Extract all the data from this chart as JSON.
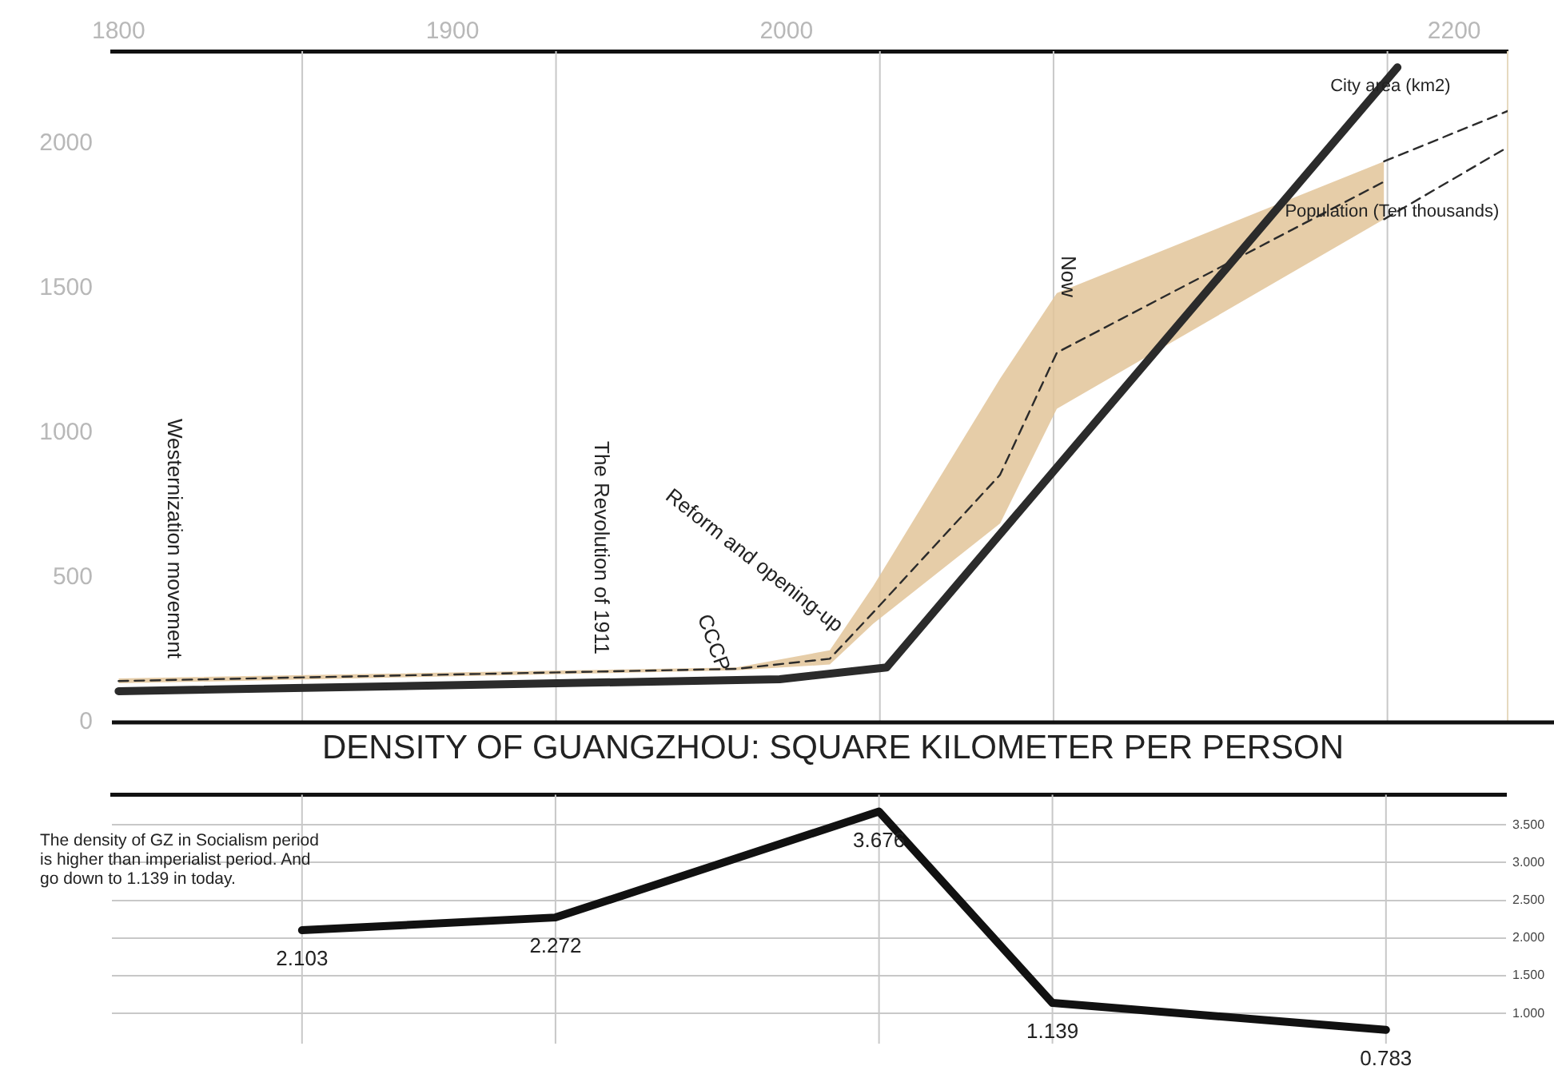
{
  "chart_data": [
    {
      "type": "line",
      "xlim": [
        1798,
        2216
      ],
      "xticks": [
        1800,
        1900,
        2000,
        2200
      ],
      "ylim": [
        0,
        2320
      ],
      "yticks": [
        0,
        500,
        1000,
        1500,
        2000
      ],
      "series": [
        {
          "name": "City area (km2)",
          "color": "#2b2b2b",
          "x": [
            1800,
            1998,
            2030,
            2183
          ],
          "values": [
            108,
            149,
            190,
            2264
          ]
        },
        {
          "name": "Population (Ten thousands)",
          "color": "#2b2b2b",
          "line_style": "dashed",
          "x": [
            1800,
            1985,
            2013,
            2026,
            2064,
            2081,
            2179
          ],
          "values": [
            143,
            185,
            220,
            380,
            856,
            1278,
            1869
          ],
          "lower": [
            135,
            180,
            200,
            341,
            688,
            1084,
            1739
          ],
          "upper": [
            152,
            190,
            249,
            471,
            1188,
            1484,
            1939
          ]
        },
        {
          "color": "#2b2b2b",
          "line_style": "dashed",
          "x": [
            2179,
            2216
          ],
          "values": [
            1939,
            2113
          ]
        },
        {
          "color": "#2b2b2b",
          "line_style": "dashed",
          "x": [
            2179,
            2216
          ],
          "values": [
            1739,
            1988
          ]
        }
      ],
      "ref_lines": [
        {
          "axis": "x",
          "value": 1855,
          "color": "#c8c8c8"
        },
        {
          "axis": "x",
          "value": 1931,
          "color": "#c8c8c8"
        },
        {
          "axis": "x",
          "value": 2028,
          "color": "#c8c8c8"
        },
        {
          "axis": "x",
          "value": 2080,
          "color": "#c8c8c8"
        },
        {
          "axis": "x",
          "value": 2180,
          "color": "#c8c8c8"
        },
        {
          "axis": "x",
          "value": 2216,
          "color": "#e6d9bf"
        }
      ],
      "annotations": [
        "Westernization movement",
        "The Revolution of 1911",
        {
          "text": "Reform and opening-up",
          "x": 2016,
          "y": 325
        },
        {
          "text": "CCCP",
          "x": 1981,
          "y": 179
        },
        "Now"
      ]
    },
    {
      "type": "line",
      "title": "DENSITY OF GUANGZHOU: SQUARE KILOMETER PER PERSON",
      "xlim": [
        1798,
        2216
      ],
      "y2lim": [
        0.6,
        3.9
      ],
      "y2ticks": [
        {
          "value": 1,
          "label": "1.000"
        },
        {
          "value": 1.5,
          "label": "1.500"
        },
        {
          "value": 2,
          "label": "2.000"
        },
        {
          "value": 2.5,
          "label": "2.500"
        },
        {
          "value": 3,
          "label": "3.000"
        },
        {
          "value": 3.5,
          "label": "3.500"
        }
      ],
      "tick_labels": "y",
      "grid": "y",
      "data_labels": true,
      "series": [
        {
          "color": "#111111",
          "axis": "y2",
          "x": [
            1855,
            1931,
            2028,
            2080,
            2180
          ],
          "values": [
            2.103,
            2.272,
            3.676,
            1.139,
            0.783
          ]
        }
      ],
      "ref_lines": [
        {
          "axis": "x",
          "value": 1855,
          "color": "#c8c8c8"
        },
        {
          "axis": "x",
          "value": 1931,
          "color": "#c8c8c8"
        },
        {
          "axis": "x",
          "value": 2028,
          "color": "#c8c8c8"
        },
        {
          "axis": "x",
          "value": 2080,
          "color": "#c8c8c8"
        },
        {
          "axis": "x",
          "value": 2180,
          "color": "#c8c8c8"
        }
      ],
      "annotations": [
        "The density of GZ in Socialism period is higher than imperialist period. And go down to 1.139 in today."
      ]
    }
  ]
}
